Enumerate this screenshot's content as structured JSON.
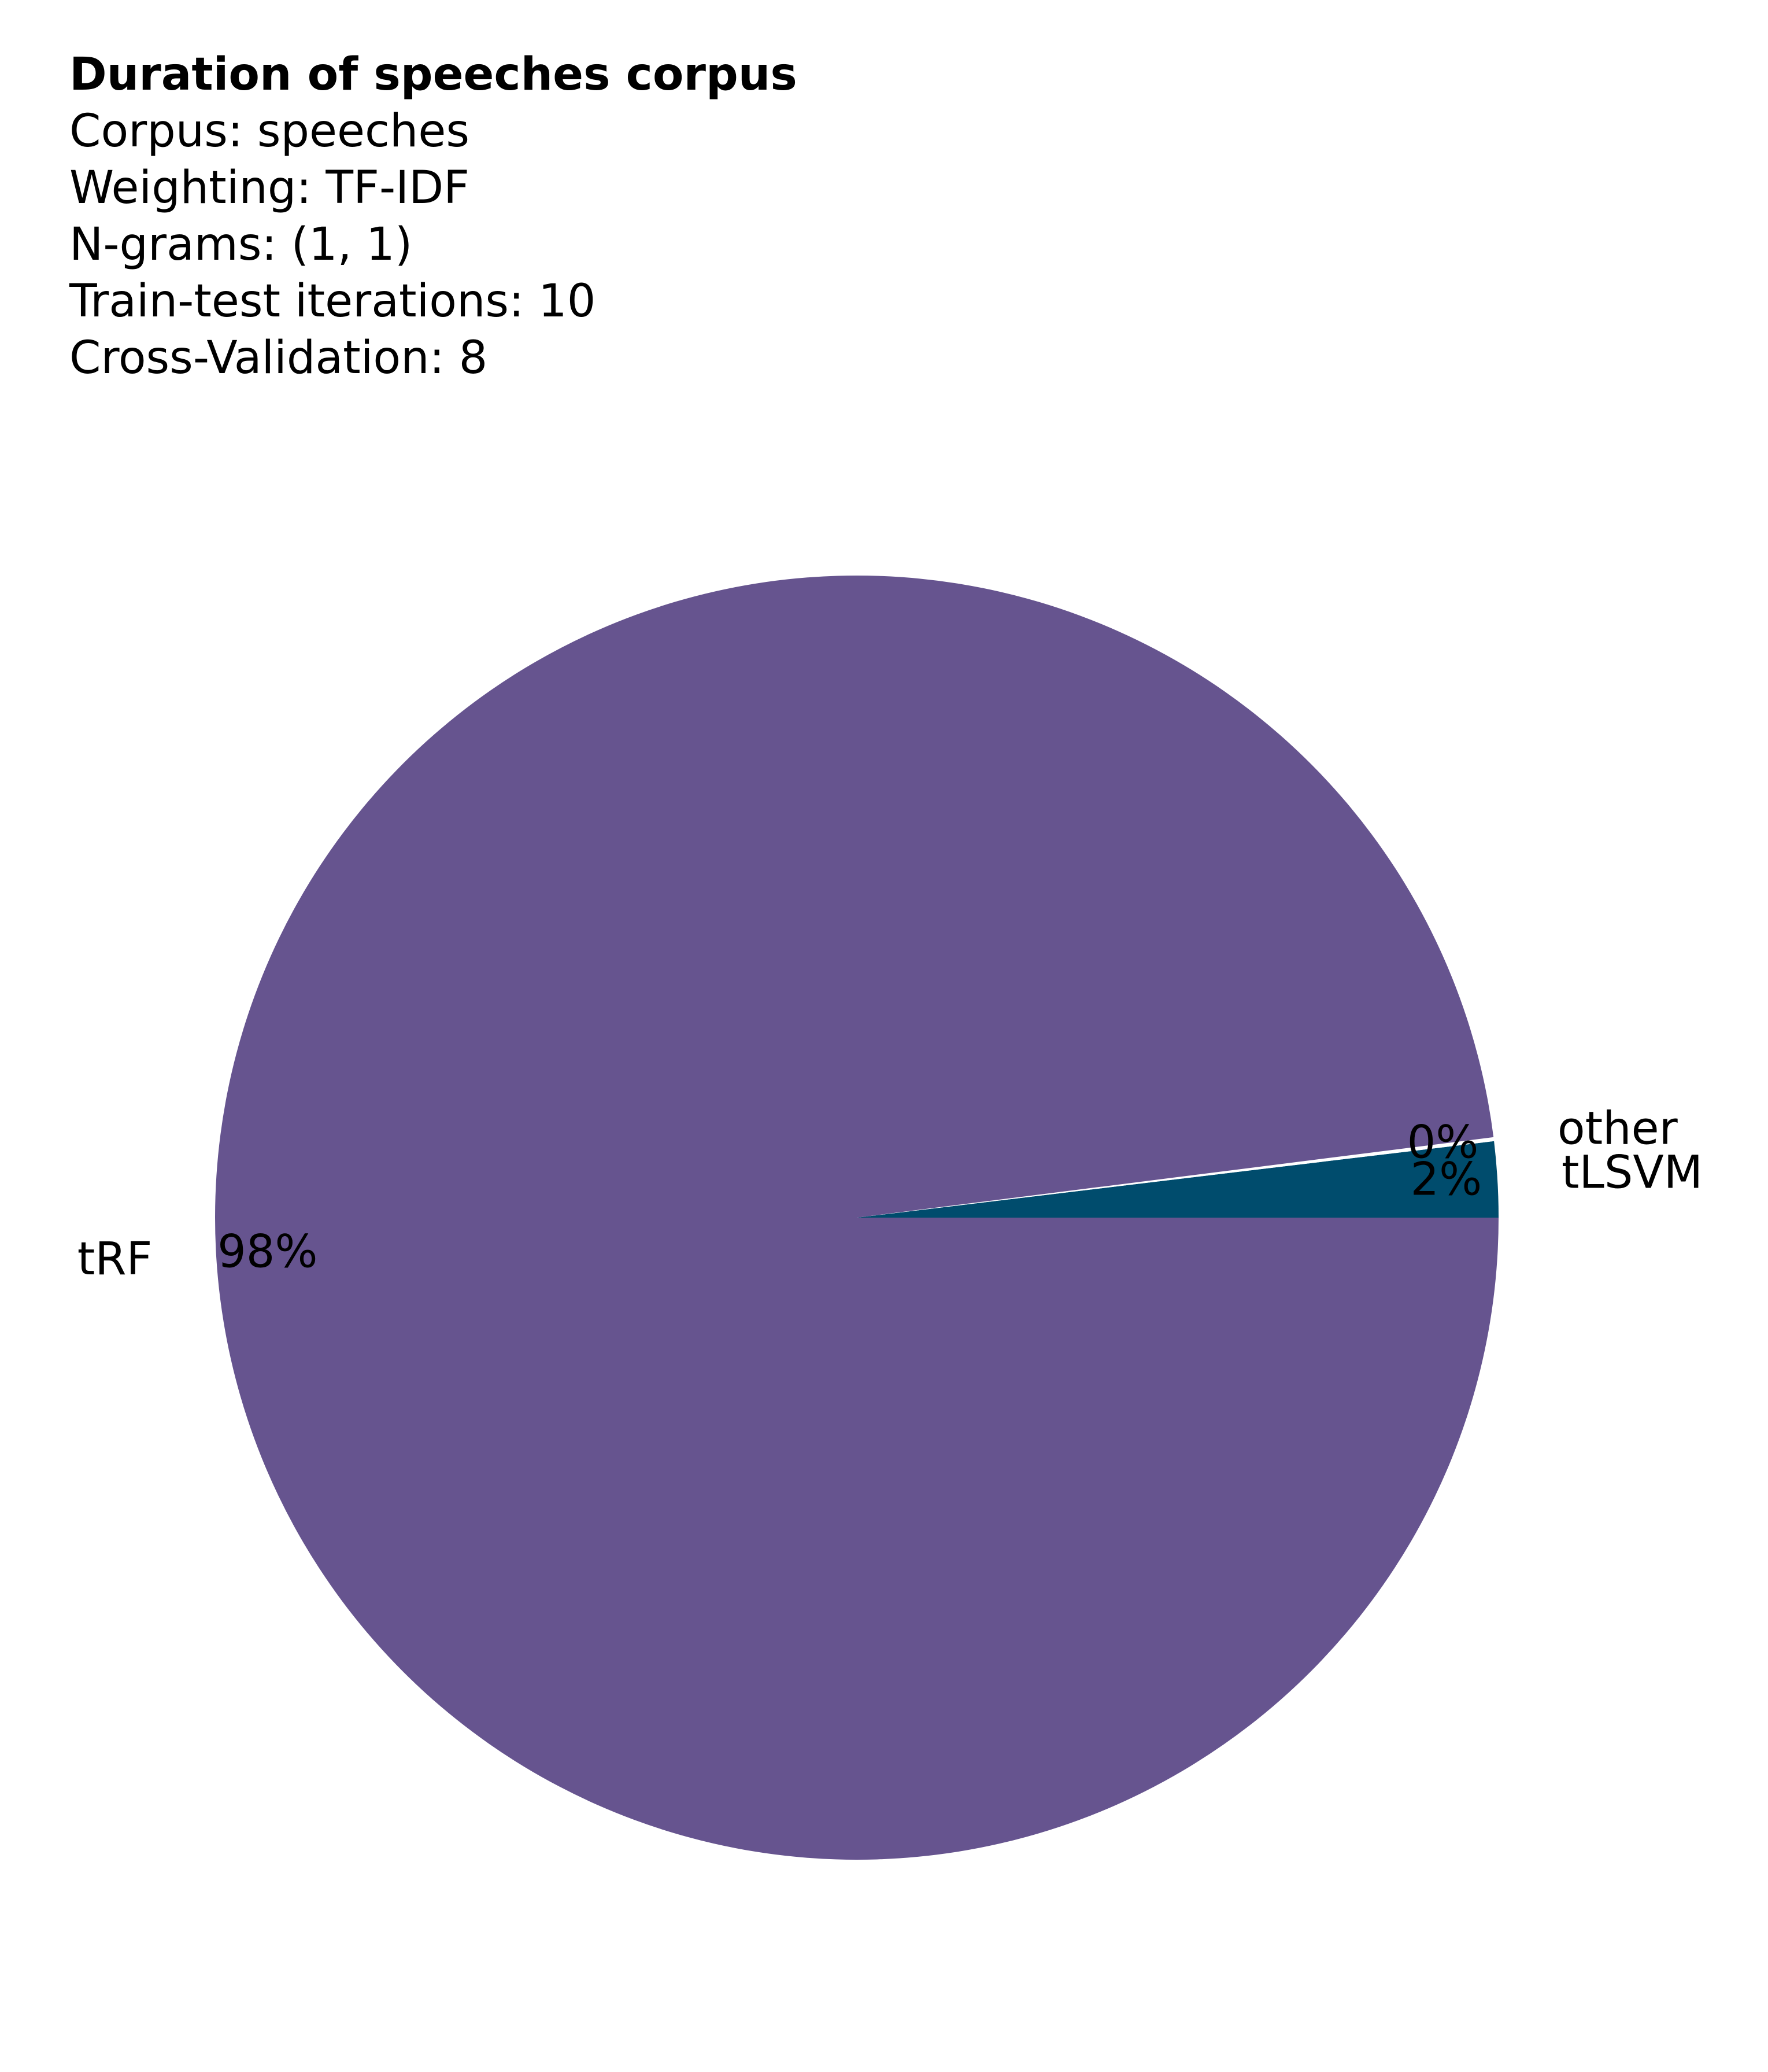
{
  "chart_data": {
    "type": "pie",
    "title": "Duration of speeches corpus",
    "subtitle_lines": [
      "Corpus: speeches",
      "Weighting: TF-IDF",
      "N-grams: (1, 1)",
      "Train-test iterations: 10",
      "Cross-Validation: 8"
    ],
    "slices": [
      {
        "label": "tLSVM",
        "value": 1.9,
        "percent_label": "2%",
        "color": "#004c6d"
      },
      {
        "label": "other",
        "value": 0.1,
        "percent_label": "0%",
        "color": "#ffffff"
      },
      {
        "label": "tRF",
        "value": 98.0,
        "percent_label": "98%",
        "color": "#66548f"
      }
    ],
    "start_angle_deg": 0,
    "direction": "counterclockwise"
  }
}
